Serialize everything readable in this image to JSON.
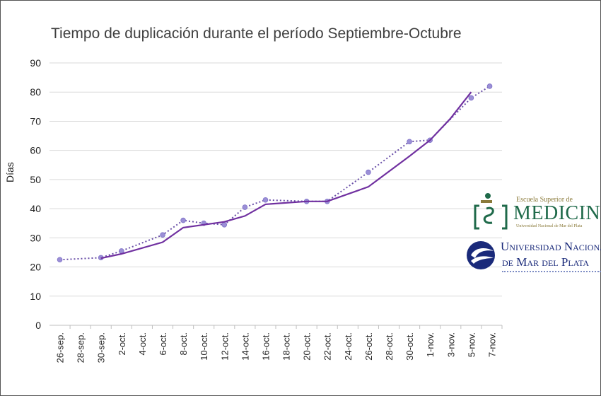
{
  "chart_data": {
    "type": "line",
    "title": "Tiempo de duplicación durante el período Septiembre-Octubre",
    "ylabel": "Días",
    "xlabel": "",
    "ylim": [
      0,
      90
    ],
    "yticks": [
      0,
      10,
      20,
      30,
      40,
      50,
      60,
      70,
      80,
      90
    ],
    "grid": true,
    "legend": "none",
    "categories": [
      "26-sep.",
      "28-sep.",
      "30-sep.",
      "2-oct.",
      "4-oct.",
      "6-oct.",
      "8-oct.",
      "10-oct.",
      "12-oct.",
      "14-oct.",
      "16-oct.",
      "18-oct.",
      "20-oct.",
      "22-oct.",
      "24-oct.",
      "26-oct.",
      "28-oct.",
      "30-oct.",
      "1-nov.",
      "3-nov.",
      "5-nov.",
      "7-nov."
    ],
    "series": [
      {
        "style": "dotted-markers",
        "color": "#9b8fd6",
        "points": [
          {
            "x": "26-sep.",
            "y": 22.5
          },
          {
            "x": "30-sep.",
            "y": 23.2
          },
          {
            "x": "2-oct.",
            "y": 25.5
          },
          {
            "x": "6-oct.",
            "y": 31
          },
          {
            "x": "8-oct.",
            "y": 36
          },
          {
            "x": "10-oct.",
            "y": 35
          },
          {
            "x": "12-oct.",
            "y": 34.5
          },
          {
            "x": "14-oct.",
            "y": 40.5
          },
          {
            "x": "16-oct.",
            "y": 43
          },
          {
            "x": "20-oct.",
            "y": 42.5
          },
          {
            "x": "22-oct.",
            "y": 42.5
          },
          {
            "x": "26-oct.",
            "y": 52.5
          },
          {
            "x": "30-oct.",
            "y": 63
          },
          {
            "x": "1-nov.",
            "y": 63.5
          },
          {
            "x": "5-nov.",
            "y": 78
          },
          {
            "x": "5-nov.",
            "y": 82
          }
        ]
      },
      {
        "style": "solid",
        "color": "#7030a0",
        "points": [
          {
            "x": "30-sep.",
            "y": 23
          },
          {
            "x": "2-oct.",
            "y": 24.5
          },
          {
            "x": "6-oct.",
            "y": 28.5
          },
          {
            "x": "8-oct.",
            "y": 33.5
          },
          {
            "x": "12-oct.",
            "y": 35.5
          },
          {
            "x": "14-oct.",
            "y": 37.5
          },
          {
            "x": "16-oct.",
            "y": 41.5
          },
          {
            "x": "20-oct.",
            "y": 42.5
          },
          {
            "x": "22-oct.",
            "y": 42.5
          },
          {
            "x": "26-oct.",
            "y": 47.5
          },
          {
            "x": "30-oct.",
            "y": 58
          },
          {
            "x": "1-nov.",
            "y": 63.5
          },
          {
            "x": "3-nov.",
            "y": 71
          },
          {
            "x": "5-nov.",
            "y": 80
          }
        ]
      }
    ]
  },
  "logos": {
    "medicina_small": "Escuela Superior de",
    "medicina_big": "MEDICINA",
    "medicina_sub": "Universidad Nacional de Mar del Plata",
    "universidad_line1": "Universidad Nacional",
    "universidad_line2": "de Mar del Plata"
  }
}
